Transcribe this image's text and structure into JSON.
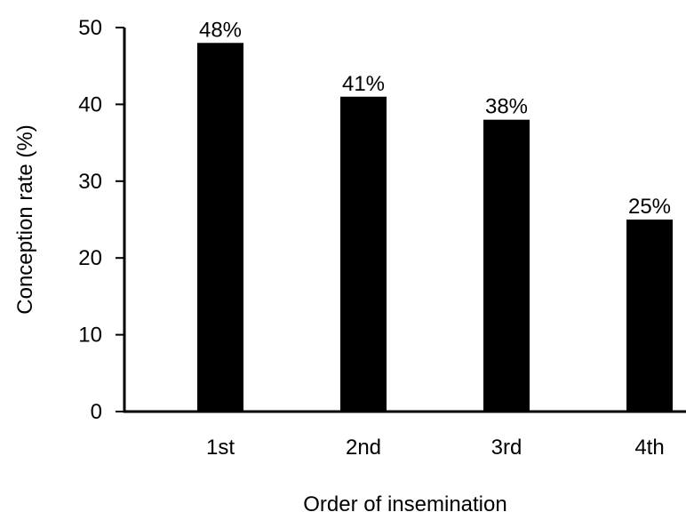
{
  "chart_data": {
    "type": "bar",
    "x_label": "Order of insemination",
    "y_label": "Conception rate (%)",
    "categories": [
      "1st",
      "2nd",
      "3rd",
      "4th"
    ],
    "values": [
      48,
      41,
      38,
      25
    ],
    "value_labels": [
      "48%",
      "41%",
      "38%",
      "25%"
    ],
    "color": "#000000",
    "ylim": [
      0,
      50
    ],
    "yticks": [
      0,
      10,
      20,
      30,
      40,
      50
    ],
    "grid": false
  }
}
